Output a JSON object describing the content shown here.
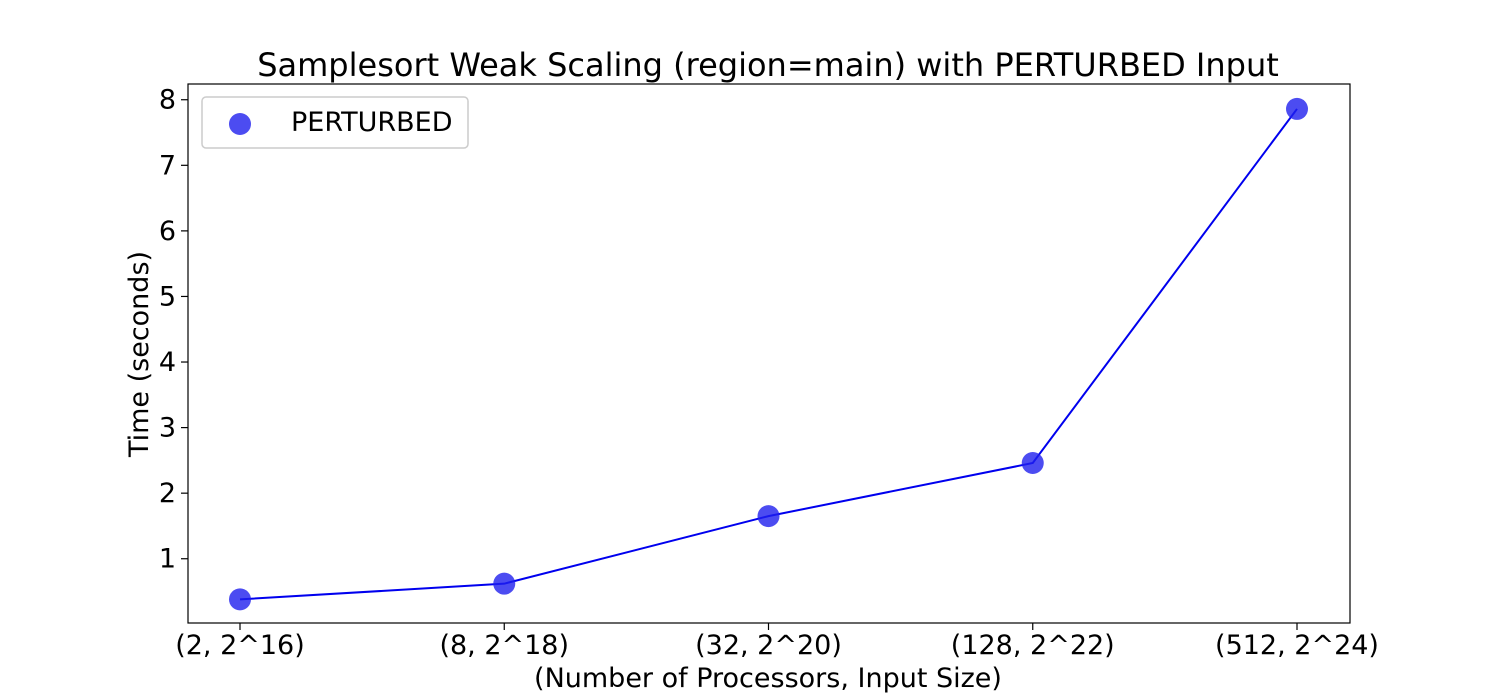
{
  "chart_data": {
    "type": "line",
    "title": "Samplesort Weak Scaling (region=main) with PERTURBED Input",
    "xlabel": "(Number of Processors, Input Size)",
    "ylabel": "Time (seconds)",
    "categories": [
      "(2, 2^16)",
      "(8, 2^18)",
      "(32, 2^20)",
      "(128, 2^22)",
      "(512, 2^24)"
    ],
    "series": [
      {
        "name": "PERTURBED",
        "values": [
          0.38,
          0.62,
          1.65,
          2.46,
          7.86
        ],
        "line_color": "#0000ee",
        "marker_color": "#1f1fee",
        "markers": true
      }
    ],
    "yticks": [
      1,
      2,
      3,
      4,
      5,
      6,
      7,
      8
    ],
    "ylim": [
      0.02,
      8.24
    ],
    "grid": false,
    "legend_position": "top-left"
  }
}
